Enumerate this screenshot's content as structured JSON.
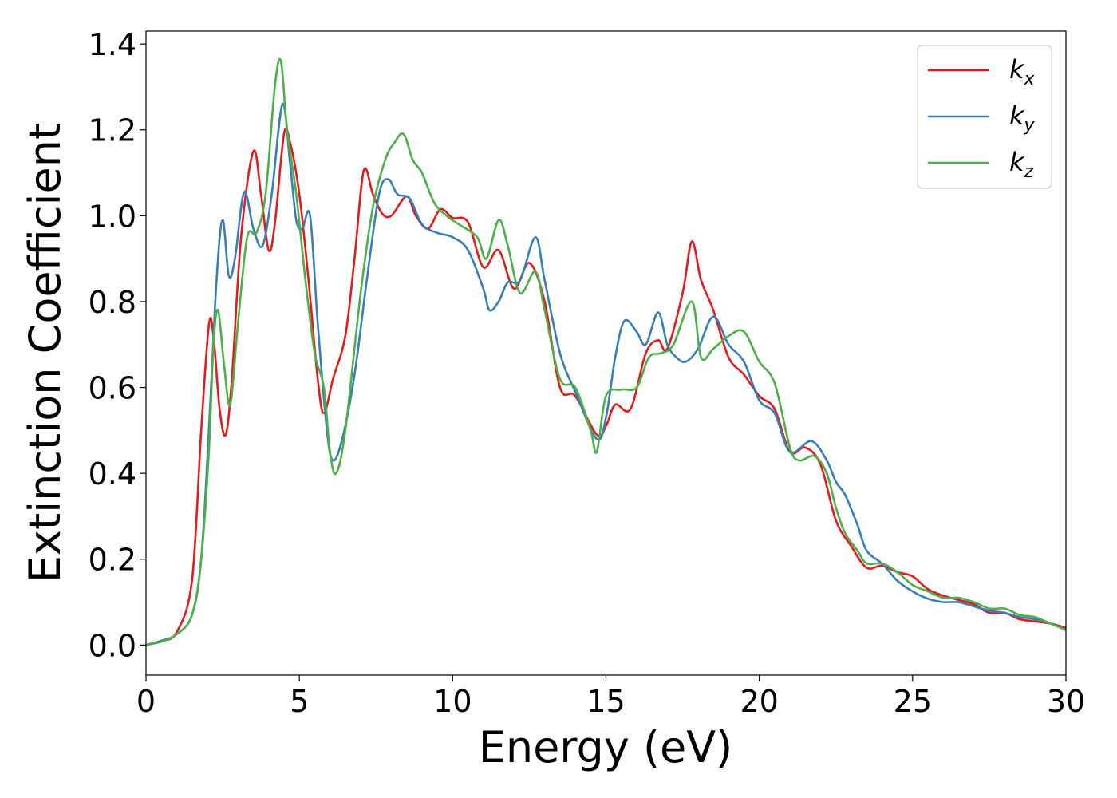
{
  "chart_data": {
    "type": "line",
    "title": "",
    "xlabel": "Energy (eV)",
    "ylabel": "Extinction Coefficient",
    "xlim": [
      0,
      30
    ],
    "ylim": [
      -0.07,
      1.43
    ],
    "xticks": [
      0,
      5,
      10,
      15,
      20,
      25,
      30
    ],
    "xtick_labels": [
      "0",
      "5",
      "10",
      "15",
      "20",
      "25",
      "30"
    ],
    "yticks": [
      0.0,
      0.2,
      0.4,
      0.6,
      0.8,
      1.0,
      1.2,
      1.4
    ],
    "ytick_labels": [
      "0.0",
      "0.2",
      "0.4",
      "0.6",
      "0.8",
      "1.0",
      "1.2",
      "1.4"
    ],
    "grid": false,
    "legend_position": "top-right",
    "series": [
      {
        "name": "k_x",
        "base": "k",
        "sub": "x",
        "color": "#e41a1c",
        "points": [
          [
            0,
            0.0
          ],
          [
            0.5,
            0.01
          ],
          [
            1,
            0.03
          ],
          [
            1.5,
            0.15
          ],
          [
            1.8,
            0.5
          ],
          [
            2.05,
            0.745
          ],
          [
            2.2,
            0.72
          ],
          [
            2.4,
            0.55
          ],
          [
            2.6,
            0.49
          ],
          [
            2.8,
            0.62
          ],
          [
            3.1,
            0.95
          ],
          [
            3.5,
            1.15
          ],
          [
            3.75,
            1.05
          ],
          [
            4.0,
            0.92
          ],
          [
            4.2,
            0.98
          ],
          [
            4.5,
            1.19
          ],
          [
            4.7,
            1.17
          ],
          [
            5.0,
            1.05
          ],
          [
            5.3,
            0.85
          ],
          [
            5.6,
            0.62
          ],
          [
            5.8,
            0.54
          ],
          [
            6.1,
            0.62
          ],
          [
            6.5,
            0.72
          ],
          [
            6.8,
            0.9
          ],
          [
            7.1,
            1.105
          ],
          [
            7.4,
            1.05
          ],
          [
            7.7,
            1.005
          ],
          [
            8.0,
            1.0
          ],
          [
            8.5,
            1.045
          ],
          [
            8.8,
            1.0
          ],
          [
            9.2,
            0.97
          ],
          [
            9.6,
            1.015
          ],
          [
            10.0,
            0.995
          ],
          [
            10.5,
            0.985
          ],
          [
            11.0,
            0.88
          ],
          [
            11.5,
            0.92
          ],
          [
            12.0,
            0.83
          ],
          [
            12.5,
            0.89
          ],
          [
            13.0,
            0.8
          ],
          [
            13.5,
            0.6
          ],
          [
            14.0,
            0.58
          ],
          [
            14.7,
            0.49
          ],
          [
            15.0,
            0.51
          ],
          [
            15.3,
            0.56
          ],
          [
            15.8,
            0.55
          ],
          [
            16.3,
            0.68
          ],
          [
            16.7,
            0.71
          ],
          [
            17.0,
            0.69
          ],
          [
            17.5,
            0.82
          ],
          [
            17.8,
            0.94
          ],
          [
            18.1,
            0.85
          ],
          [
            18.5,
            0.78
          ],
          [
            19.0,
            0.67
          ],
          [
            19.5,
            0.63
          ],
          [
            20.0,
            0.58
          ],
          [
            20.5,
            0.55
          ],
          [
            21.0,
            0.45
          ],
          [
            21.5,
            0.46
          ],
          [
            22.0,
            0.42
          ],
          [
            22.5,
            0.29
          ],
          [
            23.0,
            0.23
          ],
          [
            23.5,
            0.18
          ],
          [
            24.0,
            0.185
          ],
          [
            24.5,
            0.17
          ],
          [
            25.0,
            0.16
          ],
          [
            25.5,
            0.13
          ],
          [
            26.0,
            0.115
          ],
          [
            26.5,
            0.105
          ],
          [
            27.0,
            0.095
          ],
          [
            27.5,
            0.075
          ],
          [
            28.0,
            0.075
          ],
          [
            28.5,
            0.06
          ],
          [
            29.0,
            0.055
          ],
          [
            29.5,
            0.05
          ],
          [
            30.0,
            0.04
          ]
        ]
      },
      {
        "name": "k_y",
        "base": "k",
        "sub": "y",
        "color": "#377eb8",
        "points": [
          [
            0,
            0.0
          ],
          [
            0.5,
            0.01
          ],
          [
            1,
            0.025
          ],
          [
            1.5,
            0.07
          ],
          [
            1.8,
            0.2
          ],
          [
            2.05,
            0.5
          ],
          [
            2.3,
            0.85
          ],
          [
            2.5,
            0.99
          ],
          [
            2.7,
            0.86
          ],
          [
            2.9,
            0.9
          ],
          [
            3.2,
            1.055
          ],
          [
            3.5,
            0.97
          ],
          [
            3.8,
            0.93
          ],
          [
            4.1,
            1.05
          ],
          [
            4.45,
            1.26
          ],
          [
            4.7,
            1.12
          ],
          [
            4.9,
            0.99
          ],
          [
            5.1,
            0.97
          ],
          [
            5.35,
            1.0
          ],
          [
            5.6,
            0.75
          ],
          [
            5.9,
            0.5
          ],
          [
            6.1,
            0.43
          ],
          [
            6.4,
            0.48
          ],
          [
            6.8,
            0.63
          ],
          [
            7.2,
            0.85
          ],
          [
            7.6,
            1.05
          ],
          [
            7.9,
            1.085
          ],
          [
            8.2,
            1.05
          ],
          [
            8.6,
            1.04
          ],
          [
            9.0,
            0.98
          ],
          [
            9.5,
            0.96
          ],
          [
            10.0,
            0.95
          ],
          [
            10.5,
            0.92
          ],
          [
            11.0,
            0.83
          ],
          [
            11.2,
            0.78
          ],
          [
            11.5,
            0.8
          ],
          [
            11.8,
            0.845
          ],
          [
            12.2,
            0.85
          ],
          [
            12.7,
            0.95
          ],
          [
            13.0,
            0.85
          ],
          [
            13.5,
            0.68
          ],
          [
            14.0,
            0.59
          ],
          [
            14.7,
            0.48
          ],
          [
            15.0,
            0.53
          ],
          [
            15.3,
            0.67
          ],
          [
            15.6,
            0.755
          ],
          [
            16.0,
            0.73
          ],
          [
            16.3,
            0.7
          ],
          [
            16.7,
            0.775
          ],
          [
            17.0,
            0.7
          ],
          [
            17.3,
            0.67
          ],
          [
            17.6,
            0.66
          ],
          [
            18.0,
            0.69
          ],
          [
            18.5,
            0.765
          ],
          [
            19.0,
            0.7
          ],
          [
            19.5,
            0.66
          ],
          [
            20.0,
            0.57
          ],
          [
            20.5,
            0.54
          ],
          [
            21.0,
            0.45
          ],
          [
            21.7,
            0.475
          ],
          [
            22.2,
            0.43
          ],
          [
            22.5,
            0.38
          ],
          [
            22.8,
            0.35
          ],
          [
            23.2,
            0.28
          ],
          [
            23.5,
            0.22
          ],
          [
            24.0,
            0.19
          ],
          [
            24.5,
            0.15
          ],
          [
            25.0,
            0.125
          ],
          [
            25.5,
            0.108
          ],
          [
            26.0,
            0.1
          ],
          [
            26.5,
            0.1
          ],
          [
            27.0,
            0.09
          ],
          [
            27.5,
            0.08
          ],
          [
            28.0,
            0.075
          ],
          [
            28.5,
            0.065
          ],
          [
            29.0,
            0.06
          ],
          [
            29.5,
            0.05
          ],
          [
            30.0,
            0.035
          ]
        ]
      },
      {
        "name": "k_z",
        "base": "k",
        "sub": "z",
        "color": "#4daf4a",
        "points": [
          [
            0,
            0.0
          ],
          [
            0.5,
            0.008
          ],
          [
            1,
            0.025
          ],
          [
            1.5,
            0.07
          ],
          [
            1.8,
            0.2
          ],
          [
            2.05,
            0.45
          ],
          [
            2.2,
            0.7
          ],
          [
            2.35,
            0.78
          ],
          [
            2.55,
            0.65
          ],
          [
            2.75,
            0.56
          ],
          [
            3.0,
            0.75
          ],
          [
            3.3,
            0.95
          ],
          [
            3.6,
            0.96
          ],
          [
            3.9,
            1.05
          ],
          [
            4.2,
            1.3
          ],
          [
            4.4,
            1.36
          ],
          [
            4.6,
            1.2
          ],
          [
            4.9,
            1.05
          ],
          [
            5.2,
            0.85
          ],
          [
            5.5,
            0.68
          ],
          [
            5.8,
            0.6
          ],
          [
            6.0,
            0.45
          ],
          [
            6.2,
            0.4
          ],
          [
            6.5,
            0.5
          ],
          [
            7.0,
            0.82
          ],
          [
            7.4,
            1.02
          ],
          [
            7.8,
            1.13
          ],
          [
            8.1,
            1.17
          ],
          [
            8.4,
            1.19
          ],
          [
            8.7,
            1.13
          ],
          [
            9.0,
            1.1
          ],
          [
            9.4,
            1.03
          ],
          [
            9.8,
            1.0
          ],
          [
            10.2,
            0.98
          ],
          [
            10.8,
            0.95
          ],
          [
            11.1,
            0.9
          ],
          [
            11.5,
            0.99
          ],
          [
            11.8,
            0.93
          ],
          [
            12.2,
            0.82
          ],
          [
            12.7,
            0.87
          ],
          [
            13.0,
            0.78
          ],
          [
            13.5,
            0.62
          ],
          [
            14.0,
            0.6
          ],
          [
            14.5,
            0.5
          ],
          [
            14.7,
            0.45
          ],
          [
            15.0,
            0.58
          ],
          [
            15.5,
            0.595
          ],
          [
            16.0,
            0.6
          ],
          [
            16.4,
            0.67
          ],
          [
            16.8,
            0.68
          ],
          [
            17.2,
            0.7
          ],
          [
            17.8,
            0.8
          ],
          [
            18.1,
            0.67
          ],
          [
            18.5,
            0.69
          ],
          [
            19.0,
            0.72
          ],
          [
            19.5,
            0.73
          ],
          [
            20.0,
            0.66
          ],
          [
            20.5,
            0.61
          ],
          [
            21.0,
            0.46
          ],
          [
            21.3,
            0.43
          ],
          [
            21.8,
            0.44
          ],
          [
            22.2,
            0.4
          ],
          [
            22.5,
            0.32
          ],
          [
            22.8,
            0.26
          ],
          [
            23.2,
            0.22
          ],
          [
            23.5,
            0.19
          ],
          [
            24.0,
            0.19
          ],
          [
            24.5,
            0.17
          ],
          [
            25.0,
            0.14
          ],
          [
            25.5,
            0.125
          ],
          [
            26.0,
            0.11
          ],
          [
            26.5,
            0.11
          ],
          [
            27.0,
            0.1
          ],
          [
            27.5,
            0.085
          ],
          [
            28.0,
            0.085
          ],
          [
            28.5,
            0.07
          ],
          [
            29.0,
            0.065
          ],
          [
            29.5,
            0.05
          ],
          [
            30.0,
            0.035
          ]
        ]
      }
    ]
  }
}
